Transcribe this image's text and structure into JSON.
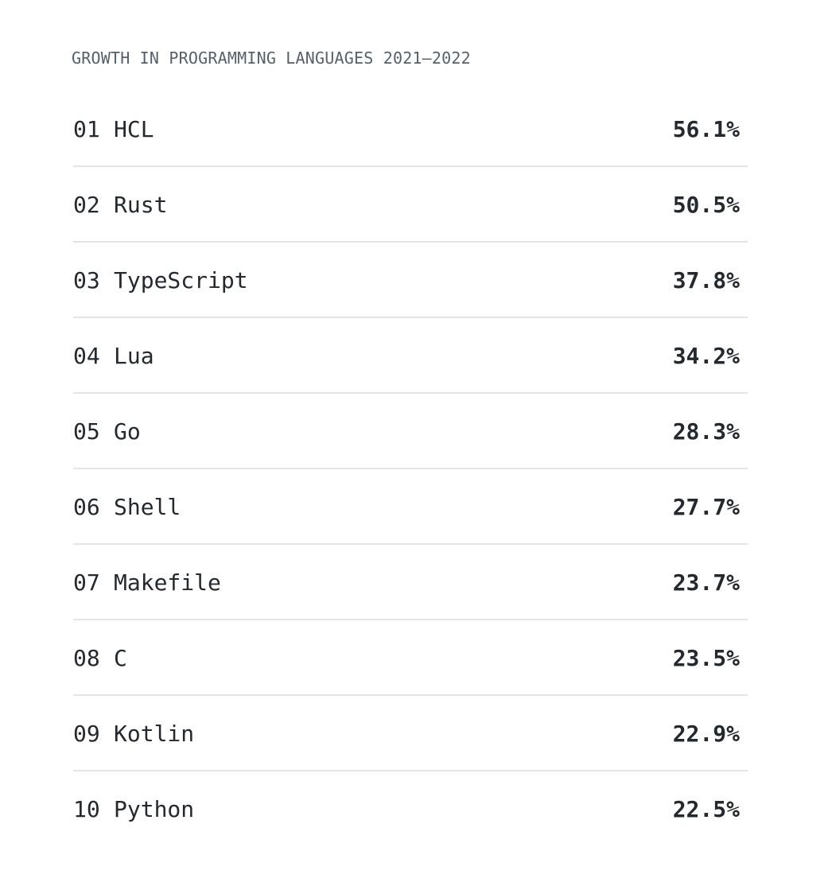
{
  "title": "GROWTH IN PROGRAMMING LANGUAGES 2021–2022",
  "languages": [
    {
      "rank": "01",
      "name": "HCL",
      "growth": "56.1%"
    },
    {
      "rank": "02",
      "name": "Rust",
      "growth": "50.5%"
    },
    {
      "rank": "03",
      "name": "TypeScript",
      "growth": "37.8%"
    },
    {
      "rank": "04",
      "name": "Lua",
      "growth": "34.2%"
    },
    {
      "rank": "05",
      "name": "Go",
      "growth": "28.3%"
    },
    {
      "rank": "06",
      "name": "Shell",
      "growth": "27.7%"
    },
    {
      "rank": "07",
      "name": "Makefile",
      "growth": "23.7%"
    },
    {
      "rank": "08",
      "name": "C",
      "growth": "23.5%"
    },
    {
      "rank": "09",
      "name": "Kotlin",
      "growth": "22.9%"
    },
    {
      "rank": "10",
      "name": "Python",
      "growth": "22.5%"
    }
  ]
}
